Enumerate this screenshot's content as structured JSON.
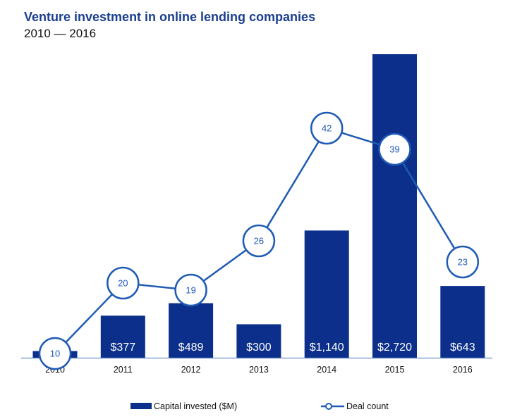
{
  "title": "Venture investment in online lending companies",
  "subtitle": "2010 — 2016",
  "colors": {
    "bar": "#0b2f8a",
    "line": "#1f5bb5",
    "axis": "#6b8fc9",
    "title": "#1b3f8f"
  },
  "chart_data": {
    "type": "bar",
    "categories": [
      "2010",
      "2011",
      "2012",
      "2013",
      "2014",
      "2015",
      "2016"
    ],
    "series": [
      {
        "name": "Capital invested ($M)",
        "type": "bar",
        "values": [
          60,
          377,
          489,
          300,
          1140,
          2720,
          643
        ],
        "labels": [
          "",
          "$377",
          "$489",
          "$300",
          "$1,140",
          "$2,720",
          "$643"
        ]
      },
      {
        "name": "Deal count",
        "type": "line",
        "values": [
          10,
          20,
          19,
          26,
          42,
          39,
          23
        ],
        "labels": [
          "10",
          "20",
          "19",
          "26",
          "42",
          "39",
          "23"
        ]
      }
    ],
    "ylim_bar": [
      0,
      2720
    ],
    "ylim_line": [
      0,
      50
    ],
    "grid": false,
    "legend_position": "bottom"
  }
}
